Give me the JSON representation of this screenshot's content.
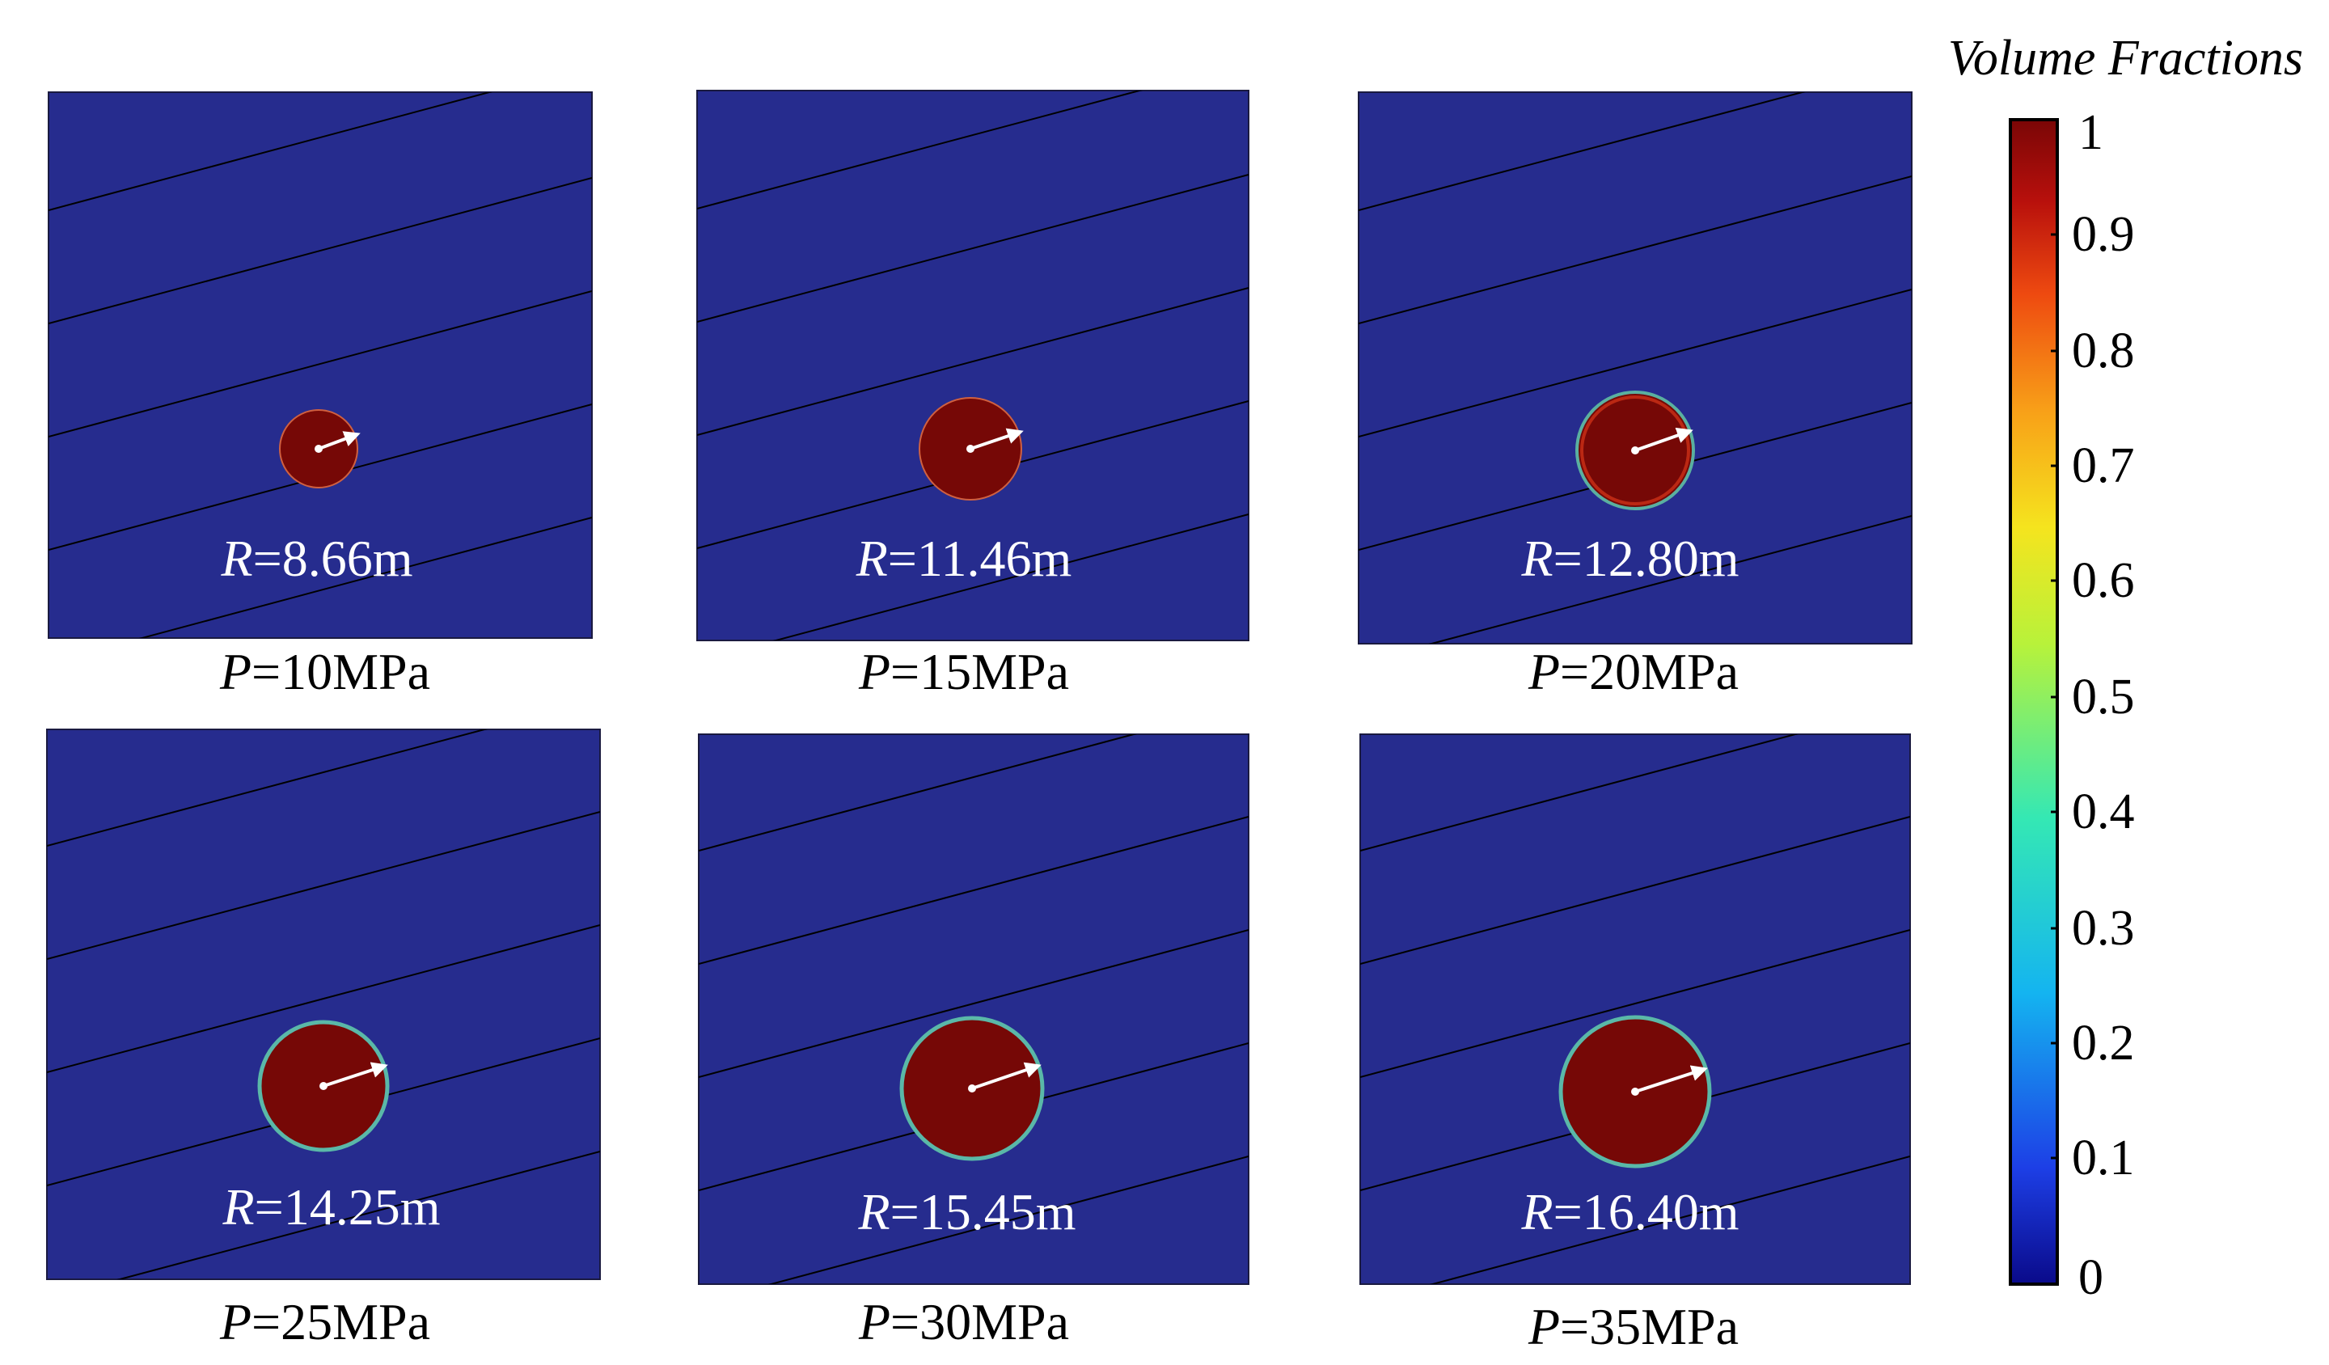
{
  "colorbar": {
    "title": "Volume Fractions",
    "ticks": [
      "1",
      "0.9",
      "0.8",
      "0.7",
      "0.6",
      "0.5",
      "0.4",
      "0.3",
      "0.2",
      "0.1",
      "0"
    ],
    "colors": [
      "#0a0a8a",
      "#1d3fe6",
      "#14b4f0",
      "#34e8b4",
      "#b8f23a",
      "#f5e41e",
      "#f8a018",
      "#ee4a10",
      "#b8100c",
      "#7a0606"
    ]
  },
  "background_color": "#262c8e",
  "fluid_color": "#760806",
  "panels": [
    {
      "radius_var": "R",
      "radius_value": "=8.66m",
      "pressure_var": "P",
      "pressure_value": "=10MPa"
    },
    {
      "radius_var": "R",
      "radius_value": "=11.46m",
      "pressure_var": "P",
      "pressure_value": "=15MPa"
    },
    {
      "radius_var": "R",
      "radius_value": "=12.80m",
      "pressure_var": "P",
      "pressure_value": "=20MPa"
    },
    {
      "radius_var": "R",
      "radius_value": "=14.25m",
      "pressure_var": "P",
      "pressure_value": "=25MPa"
    },
    {
      "radius_var": "R",
      "radius_value": "=15.45m",
      "pressure_var": "P",
      "pressure_value": "=30MPa"
    },
    {
      "radius_var": "R",
      "radius_value": "=16.40m",
      "pressure_var": "P",
      "pressure_value": "=35MPa"
    }
  ]
}
